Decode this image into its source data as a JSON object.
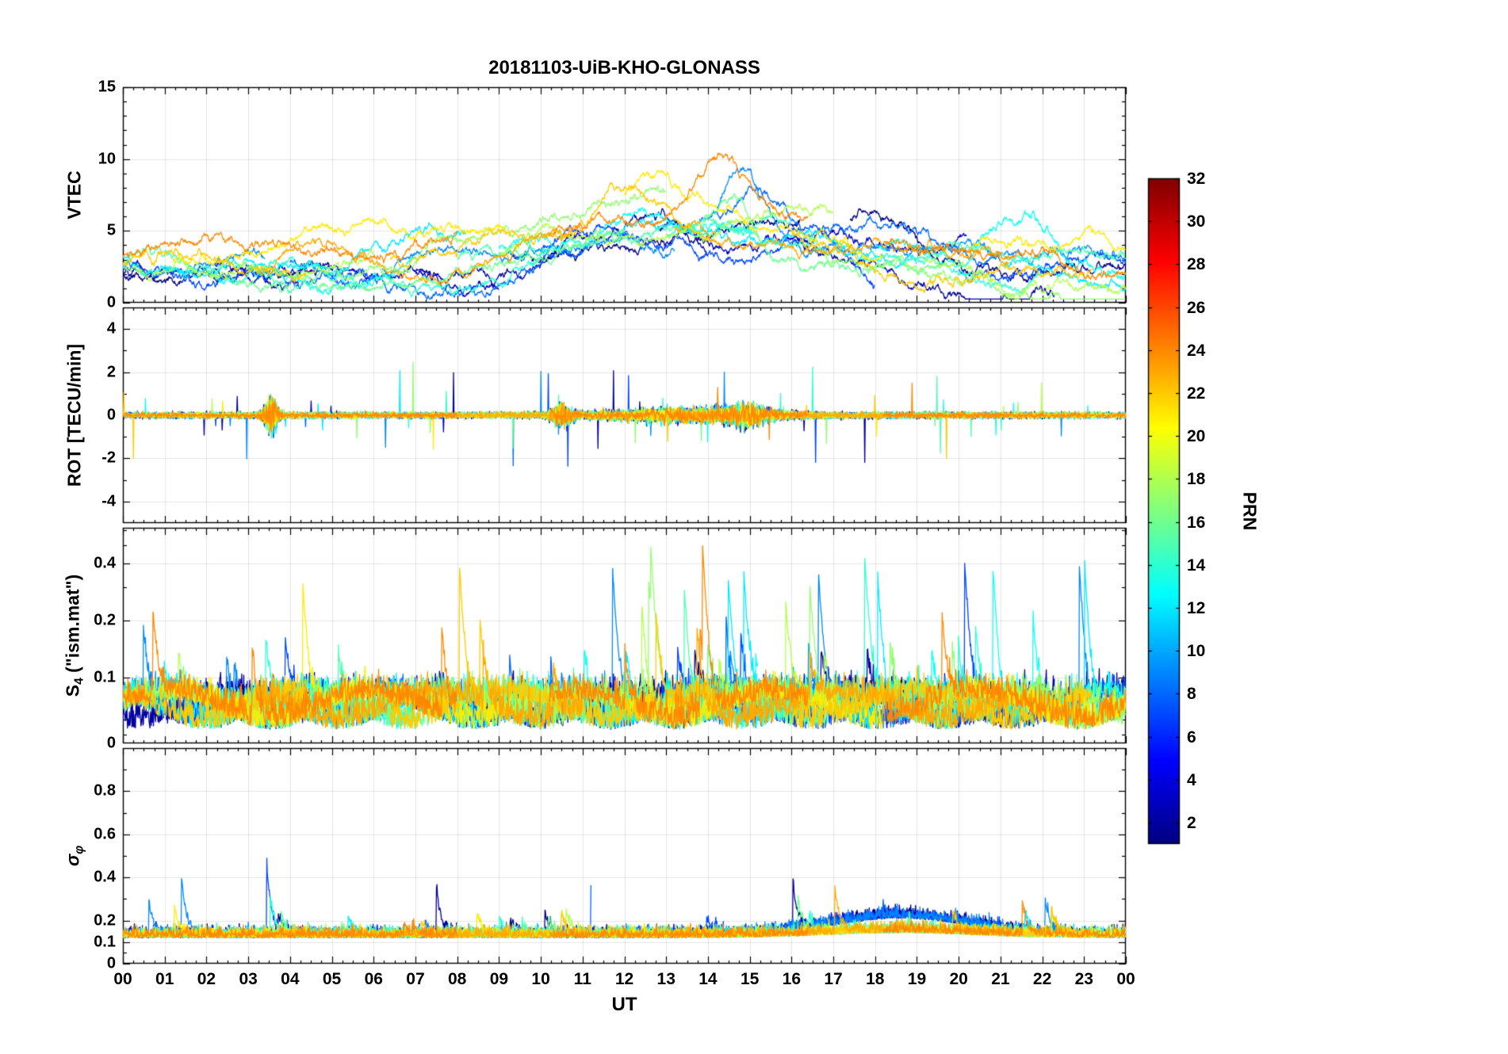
{
  "chart_data": {
    "type": "line",
    "title": "20181103-UiB-KHO-GLONASS",
    "xlabel": "UT",
    "xlim": [
      0,
      24
    ],
    "x_minor_step": 0.25,
    "sample_step_hours": 0.012,
    "grid": true,
    "xticks": [
      0,
      1,
      2,
      3,
      4,
      5,
      6,
      7,
      8,
      9,
      10,
      11,
      12,
      13,
      14,
      15,
      16,
      17,
      18,
      19,
      20,
      21,
      22,
      23,
      24
    ],
    "xtick_labels": [
      "00",
      "01",
      "02",
      "03",
      "04",
      "05",
      "06",
      "07",
      "08",
      "09",
      "10",
      "11",
      "12",
      "13",
      "14",
      "15",
      "16",
      "17",
      "18",
      "19",
      "20",
      "21",
      "22",
      "23",
      "00"
    ],
    "panels": [
      {
        "name": "VTEC",
        "ylabel_segments": [
          {
            "t": "VTEC"
          }
        ],
        "scale": "linear",
        "ylim": [
          0,
          15
        ],
        "yticks": [
          {
            "v": 0,
            "label": "0",
            "grid": false
          },
          {
            "v": 5,
            "label": "5",
            "grid": true
          },
          {
            "v": 10,
            "label": "10",
            "grid": true
          },
          {
            "v": 15,
            "label": "15",
            "grid": false
          }
        ],
        "minor_yticks": [
          1,
          2,
          3,
          4,
          6,
          7,
          8,
          9,
          11,
          12,
          13,
          14
        ],
        "signal": {
          "kind": "vtec",
          "diurnal_peak": 13.5,
          "diurnal_amp": 2.8,
          "diurnal_width": 4.2,
          "slow_step": 0.09,
          "fast_step": 0.5
        }
      },
      {
        "name": "ROT",
        "ylabel_segments": [
          {
            "t": "ROT [TECU/min]"
          }
        ],
        "scale": "linear",
        "ylim": [
          -5,
          5
        ],
        "yticks": [
          {
            "v": -4,
            "label": "-4",
            "grid": true
          },
          {
            "v": -2,
            "label": "-2",
            "grid": true
          },
          {
            "v": 0,
            "label": "0",
            "grid": true
          },
          {
            "v": 2,
            "label": "2",
            "grid": true
          },
          {
            "v": 4,
            "label": "4",
            "grid": true
          }
        ],
        "minor_yticks": [
          -3,
          -1,
          1,
          3
        ],
        "signal": {
          "kind": "rot",
          "base_amp": 0.12,
          "spike_prob": 0.003,
          "spike_max": 2.0,
          "bursts": [
            {
              "t": 3.55,
              "w": 0.18,
              "a": 5
            },
            {
              "t": 10.5,
              "w": 0.25,
              "a": 3
            },
            {
              "t": 13.5,
              "w": 2.2,
              "a": 1.6
            },
            {
              "t": 14.9,
              "w": 0.5,
              "a": 2.2
            }
          ]
        }
      },
      {
        "name": "S4",
        "ylabel_segments": [
          {
            "t": "S"
          },
          {
            "t": "4",
            "sub": true
          },
          {
            "t": " (\"ism.mat\")"
          }
        ],
        "scale": "log",
        "ylim": [
          0.045,
          0.62
        ],
        "yticks": [
          {
            "v": 0.1,
            "label": "0.1",
            "grid": true
          },
          {
            "v": 0.2,
            "label": "0.2",
            "grid": true
          },
          {
            "v": 0.4,
            "label": "0.4",
            "grid": true
          },
          {
            "v": 0.045,
            "label": "0",
            "grid": false,
            "tick": false
          }
        ],
        "minor_yticks": [
          0.05,
          0.06,
          0.07,
          0.08,
          0.09,
          0.3,
          0.5,
          0.6
        ],
        "signal": {
          "kind": "s4",
          "baseline": 0.065,
          "noise": 0.022,
          "spike_prob": 0.0022,
          "spike_max": 0.5,
          "storm": {
            "t": 14.6,
            "w": 1.6,
            "a": 2.5
          }
        }
      },
      {
        "name": "sigma_phi",
        "ylabel_segments": [
          {
            "t": "σ",
            "italic": true
          },
          {
            "t": "φ",
            "sub": true,
            "italic": true
          }
        ],
        "scale": "linear",
        "ylim": [
          0,
          1
        ],
        "yticks": [
          {
            "v": 0,
            "label": "0",
            "grid": false
          },
          {
            "v": 0.1,
            "label": "0.1",
            "grid": true
          },
          {
            "v": 0.2,
            "label": "0.2",
            "grid": true
          },
          {
            "v": 0.4,
            "label": "0.4",
            "grid": true
          },
          {
            "v": 0.6,
            "label": "0.6",
            "grid": true
          },
          {
            "v": 0.8,
            "label": "0.8",
            "grid": true
          }
        ],
        "minor_yticks": [
          0.05,
          0.15,
          0.3,
          0.5,
          0.7,
          0.9
        ],
        "signal": {
          "kind": "sigma",
          "baseline": 0.12,
          "noise": 0.04,
          "spike_prob": 0.0018,
          "spike_max": 0.32,
          "blue_boost": {
            "t": 18.6,
            "w": 2.4,
            "a": 0.09
          }
        }
      }
    ],
    "colorbar": {
      "label": "PRN",
      "colormap": "jet",
      "range": [
        1,
        32
      ],
      "ticks": [
        2,
        4,
        6,
        8,
        10,
        12,
        14,
        16,
        18,
        20,
        22,
        24,
        26,
        28,
        30,
        32
      ]
    },
    "series": [
      {
        "prn": 1,
        "base": 2.4,
        "arcs": [
          [
            0,
            5.0
          ],
          [
            9.2,
            16.2
          ],
          [
            17.4,
            24
          ]
        ],
        "boost": {
          "t": 18.2,
          "amp": 3.2,
          "w": 1.2
        }
      },
      {
        "prn": 2,
        "base": 2.0,
        "arcs": [
          [
            0,
            4.2
          ],
          [
            7.0,
            14.0
          ],
          [
            16.0,
            22.3
          ]
        ],
        "boost": {
          "t": 12.8,
          "amp": 2.0,
          "w": 1.0
        }
      },
      {
        "prn": 3,
        "base": 2.6,
        "arcs": [
          [
            2.2,
            9.0
          ],
          [
            12.8,
            20.2
          ]
        ]
      },
      {
        "prn": 7,
        "base": 2.2,
        "arcs": [
          [
            0,
            6.2
          ],
          [
            10.0,
            18.0
          ],
          [
            20.0,
            24
          ]
        ],
        "boost": {
          "t": 16.6,
          "amp": 2.6,
          "w": 0.9
        }
      },
      {
        "prn": 8,
        "base": 2.8,
        "arcs": [
          [
            4.0,
            11.2
          ],
          [
            13.8,
            21.0
          ]
        ],
        "boost": {
          "t": 15.2,
          "amp": 3.4,
          "w": 0.8
        }
      },
      {
        "prn": 9,
        "base": 2.3,
        "arcs": [
          [
            0,
            3.4
          ],
          [
            6.2,
            13.2
          ],
          [
            14.2,
            24
          ]
        ],
        "boost": {
          "t": 14.9,
          "amp": 5.2,
          "w": 0.65
        }
      },
      {
        "prn": 12,
        "base": 2.5,
        "arcs": [
          [
            1.0,
            8.2
          ],
          [
            11.8,
            19.0
          ],
          [
            21.0,
            24
          ]
        ]
      },
      {
        "prn": 13,
        "base": 3.0,
        "arcs": [
          [
            0,
            7.0
          ],
          [
            9.0,
            15.2
          ],
          [
            18.0,
            24
          ]
        ],
        "boost": {
          "t": 21.4,
          "amp": 2.2,
          "w": 0.9
        }
      },
      {
        "prn": 14,
        "base": 2.1,
        "arcs": [
          [
            3.0,
            10.2
          ],
          [
            13.0,
            22.0
          ]
        ]
      },
      {
        "prn": 15,
        "base": 2.7,
        "arcs": [
          [
            0,
            5.4
          ],
          [
            8.0,
            16.0
          ],
          [
            19.0,
            24
          ]
        ]
      },
      {
        "prn": 16,
        "base": 1.9,
        "arcs": [
          [
            2.0,
            12.0
          ],
          [
            13.6,
            19.6
          ]
        ],
        "boost": {
          "t": 14.6,
          "amp": 2.4,
          "w": 0.5
        }
      },
      {
        "prn": 17,
        "base": 2.4,
        "arcs": [
          [
            5.0,
            13.0
          ],
          [
            16.2,
            24
          ]
        ]
      },
      {
        "prn": 18,
        "base": 2.6,
        "arcs": [
          [
            0,
            6.0
          ],
          [
            9.0,
            17.0
          ],
          [
            19.2,
            24
          ]
        ]
      },
      {
        "prn": 21,
        "base": 3.1,
        "arcs": [
          [
            1.2,
            9.2
          ],
          [
            12.0,
            18.2
          ],
          [
            20.2,
            24
          ]
        ],
        "boost": {
          "t": 12.5,
          "amp": 2.4,
          "w": 1.0
        }
      },
      {
        "prn": 22,
        "base": 2.9,
        "arcs": [
          [
            0,
            4.4
          ],
          [
            6.4,
            14.2
          ],
          [
            16.0,
            23.2
          ]
        ],
        "boost": {
          "t": 12.2,
          "amp": 2.6,
          "w": 1.2
        }
      },
      {
        "prn": 23,
        "base": 2.2,
        "arcs": [
          [
            3.2,
            11.0
          ],
          [
            13.2,
            21.2
          ]
        ]
      },
      {
        "prn": 24,
        "base": 3.2,
        "arcs": [
          [
            0,
            8.0
          ],
          [
            10.2,
            16.4
          ],
          [
            18.2,
            24
          ]
        ],
        "boost": {
          "t": 14.4,
          "amp": 3.6,
          "w": 0.8
        }
      }
    ]
  }
}
